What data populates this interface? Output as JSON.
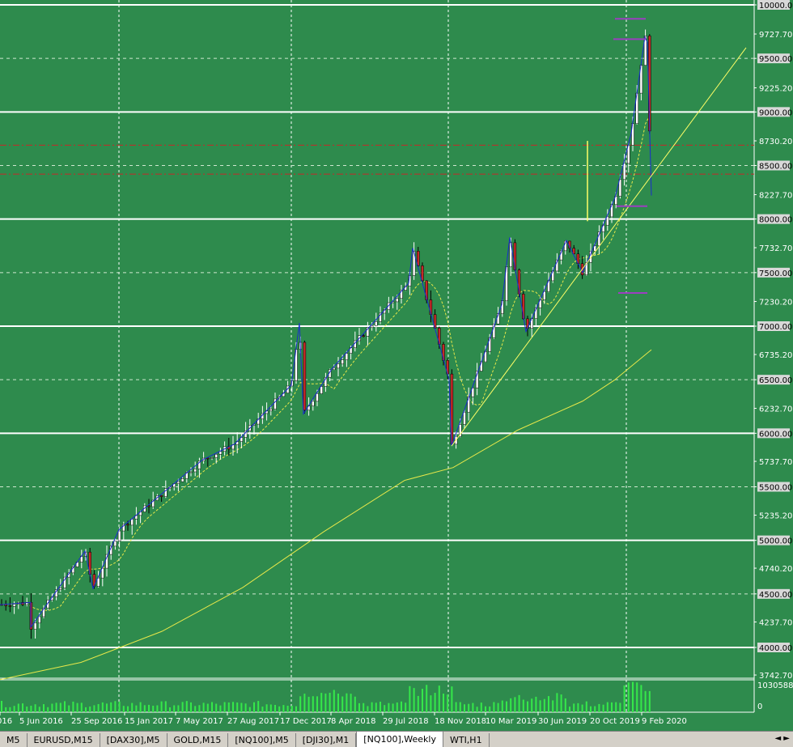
{
  "colors": {
    "background": "#2e8b4d",
    "grid": "#ffffff",
    "bull": "#ffffff",
    "bear": "#c62828",
    "zigzag": "#1a2ccf",
    "ma": "#e8e84a",
    "trendline": "#ffff66",
    "level_red": "#c62828",
    "volume": "#35e84a",
    "fib": "#9b3fc0"
  },
  "price_axis": {
    "labels": [
      "10000.00",
      "9727.70",
      "9500.00",
      "9225.20",
      "9000.00",
      "8730.20",
      "8500.00",
      "8227.70",
      "8000.00",
      "7732.70",
      "7500.00",
      "7230.20",
      "7000.00",
      "6735.20",
      "6500.00",
      "6232.70",
      "6000.00",
      "5737.70",
      "5500.00",
      "5235.20",
      "5000.00",
      "4740.20",
      "4500.00",
      "4237.70",
      "4000.00",
      "3742.70"
    ],
    "boxed": [
      "10000.00",
      "9500.00",
      "9000.00",
      "8500.00",
      "8000.00",
      "7500.00",
      "7000.00",
      "6500.00",
      "6000.00",
      "5500.00",
      "5000.00",
      "4500.00",
      "4000.00"
    ]
  },
  "volume_axis": {
    "max_label": "1030588",
    "min_label": "0"
  },
  "time_axis": {
    "labels": [
      "016",
      "5 Jun 2016",
      "25 Sep 2016",
      "15 Jan 2017",
      "7 May 2017",
      "27 Aug 2017",
      "17 Dec 2017",
      "8 Apr 2018",
      "29 Jul 2018",
      "18 Nov 2018",
      "10 Mar 2019",
      "30 Jun 2019",
      "20 Oct 2019",
      "9 Feb 2020"
    ]
  },
  "chart_data": {
    "type": "candlestick",
    "symbol": "NQ100",
    "timeframe": "Weekly",
    "ylim": [
      3700,
      10050
    ],
    "key_points": [
      {
        "x": "Mar 2016",
        "y": 4400
      },
      {
        "x": "5 Jun 2016",
        "y": 4420
      },
      {
        "x": "Jul 2016",
        "y": 4190
      },
      {
        "x": "Sep 2016",
        "y": 4900
      },
      {
        "x": "25 Sep 2016",
        "y": 4550
      },
      {
        "x": "15 Jan 2017",
        "y": 5100
      },
      {
        "x": "7 May 2017",
        "y": 5750
      },
      {
        "x": "27 Aug 2017",
        "y": 5900
      },
      {
        "x": "17 Dec 2017",
        "y": 6450
      },
      {
        "x": "Jan 2018",
        "y": 7030
      },
      {
        "x": "Feb 2018",
        "y": 6180
      },
      {
        "x": "8 Apr 2018",
        "y": 6600
      },
      {
        "x": "29 Jul 2018",
        "y": 7400
      },
      {
        "x": "Sep 2018",
        "y": 7730
      },
      {
        "x": "18 Nov 2018",
        "y": 6500
      },
      {
        "x": "Dec 2018",
        "y": 5880
      },
      {
        "x": "10 Mar 2019",
        "y": 7200
      },
      {
        "x": "May 2019",
        "y": 7830
      },
      {
        "x": "Jun 2019",
        "y": 6950
      },
      {
        "x": "30 Jun 2019",
        "y": 7800
      },
      {
        "x": "Aug 2019",
        "y": 7500
      },
      {
        "x": "20 Oct 2019",
        "y": 8200
      },
      {
        "x": "Dec 2019",
        "y": 8800
      },
      {
        "x": "Feb 2020",
        "y": 9700
      },
      {
        "x": "9 Feb 2020",
        "y": 9650
      },
      {
        "x": "Mar 2020",
        "y": 8220
      }
    ],
    "horizontal_levels_white": [
      10000,
      9000,
      8000,
      7000,
      6000,
      5000,
      4000
    ],
    "horizontal_levels_dashed": [
      9500,
      8500,
      7500,
      6500,
      5500,
      4500
    ],
    "horizontal_levels_red": [
      8690,
      8420
    ]
  },
  "tabs": [
    {
      "label": "M5",
      "active": false
    },
    {
      "label": "EURUSD,M15",
      "active": false
    },
    {
      "label": "[DAX30],M5",
      "active": false
    },
    {
      "label": "GOLD,M15",
      "active": false
    },
    {
      "label": "[NQ100],M5",
      "active": false
    },
    {
      "label": "[DJI30],M1",
      "active": false
    },
    {
      "label": "[NQ100],Weekly",
      "active": true
    },
    {
      "label": "WTI,H1",
      "active": false
    }
  ],
  "tab_scroll_arrows": "◄ ►"
}
